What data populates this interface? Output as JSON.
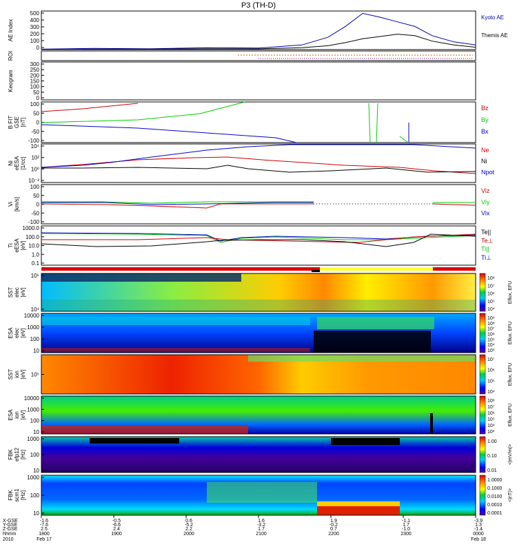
{
  "chart_data": {
    "type": "multi-panel",
    "title": "P3 (TH-D)",
    "date_start": "Feb 17",
    "date_end": "Feb 18",
    "year": "2010",
    "panels": [
      {
        "id": "ae",
        "ylabel": "AE Index",
        "yticks": [
          "500",
          "400",
          "300",
          "200",
          "100",
          "0"
        ],
        "ylim": [
          0,
          500
        ],
        "series": [
          {
            "name": "Kyoto AE",
            "color": "#0000aa",
            "t": [
              0,
              0.12,
              0.25,
              0.38,
              0.5,
              0.6,
              0.66,
              0.7,
              0.74,
              0.78,
              0.82,
              0.86,
              0.9,
              0.95,
              1.0
            ],
            "values": [
              5,
              15,
              10,
              25,
              20,
              60,
              160,
              300,
              470,
              420,
              360,
              300,
              180,
              100,
              60
            ]
          },
          {
            "name": "Themis AE",
            "color": "#000000",
            "t": [
              0,
              0.12,
              0.25,
              0.38,
              0.5,
              0.6,
              0.66,
              0.7,
              0.74,
              0.78,
              0.82,
              0.86,
              0.9,
              0.95,
              1.0
            ],
            "values": [
              0,
              5,
              5,
              10,
              10,
              25,
              50,
              90,
              140,
              170,
              200,
              180,
              110,
              60,
              30
            ]
          }
        ]
      },
      {
        "id": "roi",
        "ylabel": "ROI",
        "yticks": []
      },
      {
        "id": "keogram",
        "ylabel": "Keogram",
        "yticks": [
          "300",
          "250",
          "200",
          "150",
          "100",
          "50",
          "0"
        ],
        "ylim": [
          0,
          300
        ]
      },
      {
        "id": "bfit",
        "ylabel": "B FIT",
        "ylabel2": "GSE",
        "ylabel3": "[nT]",
        "yticks": [
          "100",
          "50",
          "0",
          "-50",
          "-100"
        ],
        "ylim": [
          -100,
          100
        ],
        "legend": [
          {
            "name": "Bz",
            "color": "#cc0000"
          },
          {
            "name": "By",
            "color": "#00cc00"
          },
          {
            "name": "Bx",
            "color": "#0000cc"
          }
        ]
      },
      {
        "id": "ni",
        "ylabel": "Ni",
        "ylabel2": "eESA",
        "ylabel3": "[1/cc]",
        "yticks": [
          "10⁴",
          "10²",
          "10⁰",
          "10⁻²"
        ],
        "legend": [
          {
            "name": "Ne",
            "color": "#cc0000"
          },
          {
            "name": "Ni",
            "color": "#000000"
          },
          {
            "name": "Npot",
            "color": "#0000cc"
          }
        ]
      },
      {
        "id": "vi",
        "ylabel": "Vi",
        "ylabel2": "[km/s]",
        "yticks": [
          "100",
          "50",
          "0",
          "-50",
          "-100"
        ],
        "ylim": [
          -100,
          100
        ],
        "legend": [
          {
            "name": "Viz",
            "color": "#cc0000"
          },
          {
            "name": "Viy",
            "color": "#00cc00"
          },
          {
            "name": "Vix",
            "color": "#0000cc"
          }
        ]
      },
      {
        "id": "ti",
        "ylabel": "Ti",
        "ylabel2": "eESA",
        "ylabel3": "[eV]",
        "yticks": [
          "1000.0",
          "100.0",
          "10.0",
          "1.0",
          "0.1"
        ],
        "legend": [
          {
            "name": "Te||",
            "color": "#000000"
          },
          {
            "name": "Te⊥",
            "color": "#cc0000"
          },
          {
            "name": "Ti||",
            "color": "#00cc00"
          },
          {
            "name": "Ti⊥",
            "color": "#0000cc"
          }
        ]
      },
      {
        "id": "esst",
        "ylabel": "SST",
        "ylabel2": "elec",
        "ylabel3": "[eV]",
        "yticks": [
          "10⁵",
          "10⁴"
        ],
        "cbar_label": "Eflux, EFU",
        "cbar_ticks": [
          "10⁸",
          "10⁷",
          "10⁶",
          "10⁵",
          "10⁴"
        ]
      },
      {
        "id": "eesa",
        "ylabel": "ESA",
        "ylabel2": "elec",
        "ylabel3": "[eV]",
        "yticks": [
          "10000",
          "1000",
          "100",
          "10"
        ],
        "cbar_label": "Eflux, EFU",
        "cbar_ticks": [
          "10⁹",
          "10⁸",
          "10⁷",
          "10⁶",
          "10⁵",
          "10⁴",
          "10³"
        ]
      },
      {
        "id": "isst",
        "ylabel": "SST",
        "ylabel2": "ion",
        "ylabel3": "[eV]",
        "yticks": [
          "10⁵"
        ],
        "cbar_label": "Eflux, EFU",
        "cbar_ticks": [
          "10⁷",
          "10⁶",
          "10⁵",
          "10⁴"
        ]
      },
      {
        "id": "iesa",
        "ylabel": "ESA",
        "ylabel2": "ion",
        "ylabel3": "[eV]",
        "yticks": [
          "10000",
          "1000",
          "100",
          "10"
        ],
        "cbar_label": "Eflux, EFU",
        "cbar_ticks": [
          "10⁸",
          "10⁷",
          "10⁶",
          "10⁵",
          "10⁴",
          "10³"
        ]
      },
      {
        "id": "fbk1",
        "ylabel": "FBK",
        "ylabel2": "efp12",
        "ylabel3": "[Hz]",
        "yticks": [
          "1000",
          "100",
          "10"
        ],
        "cbar_label": "<|mV/m|>",
        "cbar_ticks": [
          "1.00",
          "0.10",
          "0.01"
        ]
      },
      {
        "id": "fbk2",
        "ylabel": "FBK",
        "ylabel2": "scm1",
        "ylabel3": "[Hz]",
        "yticks": [
          "1000",
          "100",
          "10"
        ],
        "cbar_label": "<|nT|>",
        "cbar_ticks": [
          "1.0000",
          "0.1000",
          "0.0100",
          "0.0010",
          "0.0001"
        ]
      }
    ],
    "x_axis": {
      "row_labels": [
        "X-GSE",
        "Y-GSE",
        "Z-GSE",
        "hhmm",
        "2010"
      ],
      "ticks": [
        {
          "t": 0.0,
          "values": [
            "-1.6",
            "-7.6",
            "2.5",
            "1800",
            "Feb 17"
          ]
        },
        {
          "t": 0.2,
          "values": [
            "-0.5",
            "-6.6",
            "2.4",
            "1900",
            ""
          ]
        },
        {
          "t": 0.4,
          "values": [
            "0.6",
            "-5.2",
            "2.2",
            "2000",
            ""
          ]
        },
        {
          "t": 0.6,
          "values": [
            "1.6",
            "-3.2",
            "1.7",
            "2100",
            ""
          ]
        },
        {
          "t": 0.8,
          "values": [
            "1.9",
            "-0.2",
            "0.7",
            "2200",
            ""
          ]
        },
        {
          "t": 1.0,
          "values": [
            "-1.1",
            "1.7",
            "-1.0",
            "2300",
            ""
          ]
        },
        {
          "t": 1.2,
          "values": [
            "-3.9",
            "1.3",
            "-1.4",
            "0000",
            "Feb 18"
          ]
        }
      ]
    }
  }
}
